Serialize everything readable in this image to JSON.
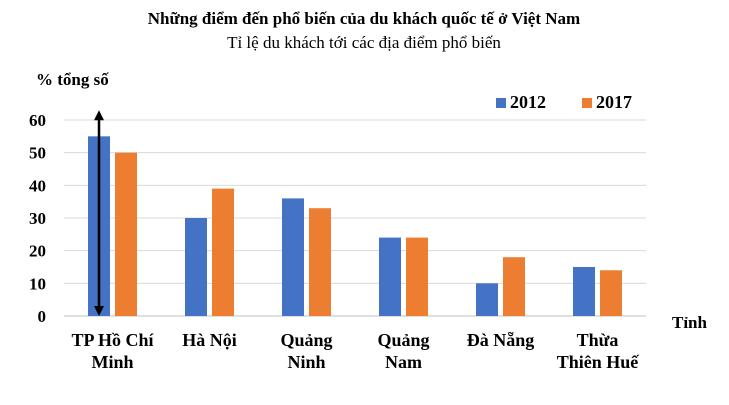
{
  "chart_data": {
    "type": "bar",
    "title": "Những điểm đến phổ biến của du khách quốc tế ở Việt Nam",
    "subtitle": "Tỉ lệ du khách tới các địa điểm phổ biến",
    "ylabel": "% tổng số",
    "xlabel": "Tỉnh",
    "ylim": [
      0,
      60
    ],
    "yticks": [
      "0",
      "10",
      "20",
      "30",
      "40",
      "50",
      "60"
    ],
    "grid": true,
    "legend_position": "top-right",
    "categories": [
      [
        "TP Hồ Chí",
        "Minh"
      ],
      [
        "Hà Nội"
      ],
      [
        "Quảng",
        "Ninh"
      ],
      [
        "Quảng",
        "Nam"
      ],
      [
        "Đà Nẵng"
      ],
      [
        "Thừa",
        "Thiên Huế"
      ]
    ],
    "series": [
      {
        "name": "2012",
        "color": "#4472c4",
        "values": [
          55,
          30,
          36,
          24,
          10,
          15
        ]
      },
      {
        "name": "2017",
        "color": "#ed7d31",
        "values": [
          50,
          39,
          33,
          24,
          18,
          14
        ]
      }
    ],
    "annotation": {
      "type": "double-arrow",
      "category_index": 0,
      "from": 0,
      "to": 63
    }
  }
}
